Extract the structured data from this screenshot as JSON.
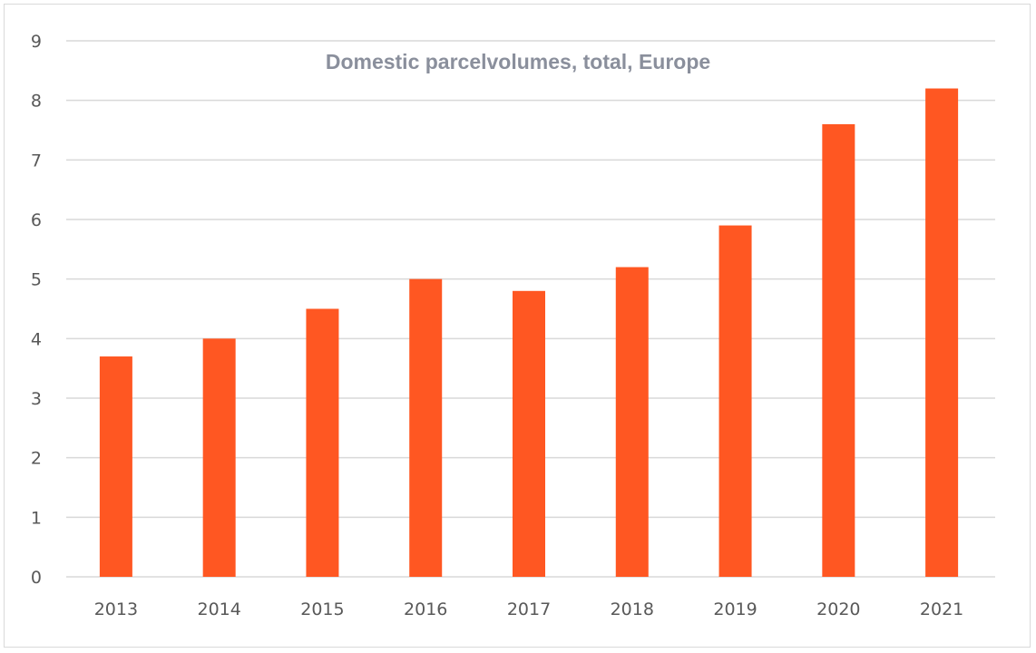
{
  "chart_data": {
    "type": "bar",
    "title": "Domestic parcelvolumes, total, Europe",
    "xlabel": "",
    "ylabel": "",
    "categories": [
      "2013",
      "2014",
      "2015",
      "2016",
      "2017",
      "2018",
      "2019",
      "2020",
      "2021"
    ],
    "values": [
      3.7,
      4.0,
      4.5,
      5.0,
      4.8,
      5.2,
      5.9,
      7.6,
      8.2
    ],
    "ylim": [
      0,
      9
    ],
    "yticks": [
      0,
      1,
      2,
      3,
      4,
      5,
      6,
      7,
      8,
      9
    ],
    "grid": true,
    "legend": "none",
    "colors": {
      "bar": "#ff5722",
      "grid": "#d9d9d9",
      "title": "#8a8f9c",
      "ticks": "#595959"
    }
  }
}
